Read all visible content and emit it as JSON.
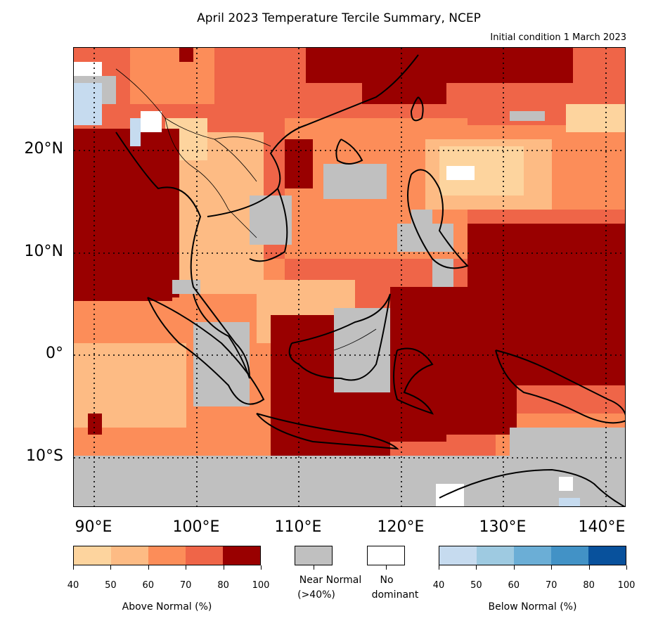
{
  "title": "April 2023 Temperature Tercile Summary, NCEP",
  "subtitle": "Initial condition 1 March 2023",
  "axes": {
    "lon_labels": [
      "90°E",
      "100°E",
      "110°E",
      "120°E",
      "130°E",
      "140°E"
    ],
    "lat_labels": [
      "20°N",
      "10°N",
      "0°",
      "10°S"
    ],
    "lon_range": [
      88,
      142
    ],
    "lat_range": [
      -15,
      30
    ],
    "gridlines": "dotted"
  },
  "legend": {
    "above_normal": {
      "label": "Above Normal (%)",
      "ticks": [
        "40",
        "50",
        "60",
        "70",
        "80",
        "100"
      ],
      "colors": [
        "#fdd49e",
        "#fdbb84",
        "#fc8d59",
        "#ef6548",
        "#990000"
      ]
    },
    "near_normal": {
      "label_line1": "Near Normal",
      "label_line2": "(>40%)",
      "color": "#c0c0c0"
    },
    "no_dominant": {
      "label_line1": "No",
      "label_line2": "dominant",
      "color": "#ffffff"
    },
    "below_normal": {
      "label": "Below Normal (%)",
      "ticks": [
        "40",
        "50",
        "60",
        "70",
        "80",
        "100"
      ],
      "colors": [
        "#c6dbef",
        "#9ecae1",
        "#6baed6",
        "#4292c6",
        "#08519c"
      ]
    }
  }
}
